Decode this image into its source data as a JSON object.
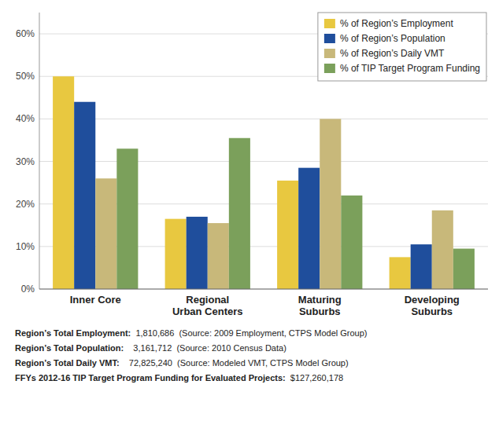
{
  "chart_data": {
    "type": "bar",
    "categories": [
      "Inner Core",
      "Regional\nUrban Centers",
      "Maturing\nSuburbs",
      "Developing\nSuburbs"
    ],
    "series": [
      {
        "name": "% of Region’s Employment",
        "color": "#E8C840",
        "values": [
          50,
          16.5,
          25.5,
          7.5
        ]
      },
      {
        "name": "% of Region’s Population",
        "color": "#1F4E9C",
        "values": [
          44,
          17,
          28.5,
          10.5
        ]
      },
      {
        "name": "% of Region’s Daily VMT",
        "color": "#C8B87A",
        "values": [
          26,
          15.5,
          40,
          18.5
        ]
      },
      {
        "name": "% of TIP Target Program Funding",
        "color": "#7BA05B",
        "values": [
          33,
          35.5,
          22,
          9.5
        ]
      }
    ],
    "ylim": [
      0,
      65
    ],
    "yticks": [
      {
        "value": 0,
        "label": "0%"
      },
      {
        "value": 10,
        "label": "10%"
      },
      {
        "value": 20,
        "label": "20%"
      },
      {
        "value": 30,
        "label": "30%"
      },
      {
        "value": 40,
        "label": "40%"
      },
      {
        "value": 50,
        "label": "50%"
      },
      {
        "value": 60,
        "label": "60%"
      }
    ],
    "grid": true,
    "legend": "upper right",
    "annotations": [
      [
        "Region’s Total Employment:",
        "  1,810,686  (Source: 2009 Employment, CTPS Model Group)"
      ],
      [
        "Region’s Total Population:",
        "    3,161,712  (Source: 2010 Census Data)"
      ],
      [
        "Region’s Total Daily VMT:",
        "    72,825,240  (Source: Modeled VMT, CTPS Model Group)"
      ],
      [
        "FFYs 2012-16 TIP Target Program Funding for Evaluated Projects:",
        "  $127,260,178"
      ]
    ]
  }
}
